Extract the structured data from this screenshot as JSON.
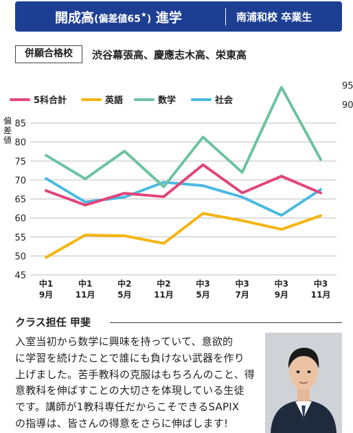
{
  "header": {
    "school": "開成高",
    "deviation": "(偏差値65",
    "mark": "★",
    "close": ")",
    "result": " 進学",
    "student": "南浦和校 卒業生"
  },
  "merit": {
    "label": "併願合格校",
    "schools": "渋谷幕張高、慶應志木高、栄東高"
  },
  "chart_data": {
    "type": "line",
    "ylabel": "偏差値",
    "ylim": [
      45,
      85
    ],
    "yticks": [
      45,
      50,
      55,
      60,
      65,
      70,
      75,
      80,
      85
    ],
    "extra_ticks": [
      90,
      95
    ],
    "grid": true,
    "legend": "top-left",
    "categories": [
      [
        "中1",
        "9月"
      ],
      [
        "中1",
        "11月"
      ],
      [
        "中2",
        "5月"
      ],
      [
        "中2",
        "11月"
      ],
      [
        "中3",
        "5月"
      ],
      [
        "中3",
        "7月"
      ],
      [
        "中3",
        "9月"
      ],
      [
        "中3",
        "11月"
      ]
    ],
    "series": [
      {
        "name": "5科合計",
        "color": "#e2457a",
        "values": [
          67.2,
          63.4,
          66.5,
          65.6,
          74.0,
          66.6,
          71.0,
          66.6
        ]
      },
      {
        "name": "英語",
        "color": "#f5b512",
        "values": [
          49.6,
          55.5,
          55.3,
          53.3,
          61.2,
          59.3,
          57.0,
          60.6
        ]
      },
      {
        "name": "数学",
        "color": "#6cc3a0",
        "values": [
          76.5,
          70.3,
          77.6,
          68.2,
          81.3,
          72.0,
          94.4,
          75.4
        ]
      },
      {
        "name": "社会",
        "color": "#4bb9e0",
        "values": [
          70.4,
          64.2,
          65.5,
          69.4,
          68.5,
          65.5,
          60.7,
          67.5
        ]
      }
    ]
  },
  "comment": {
    "title": "クラス担任 甲斐",
    "body": "入室当初から数学に興味を持っていて、意欲的\nに学習を続けたことで誰にも負けない武器を作り\n上げました。苦手教科の克服はもちろんのこと、得\n意教科を伸ばすことの大切さを体現している生徒\nです。講師が1教科専任だからこそできるSAPIX\nの指導は、皆さんの得意をさらに伸ばします!"
  }
}
